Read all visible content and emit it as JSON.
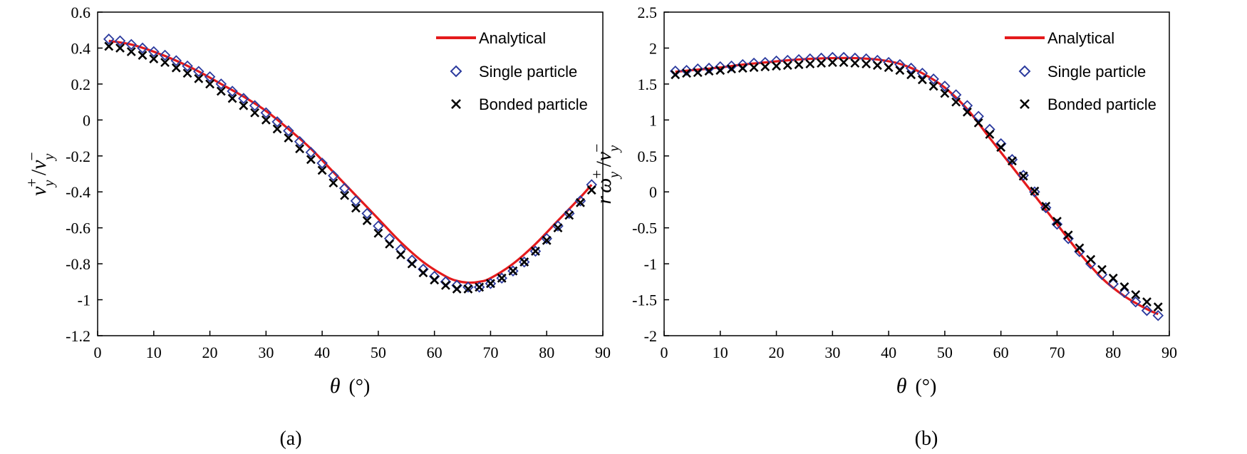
{
  "chart_data": [
    {
      "type": "line",
      "caption": "(a)",
      "title": "",
      "xlabel": "θ (°)",
      "xlabel_symbol": "θ",
      "xlabel_unit": "(°)",
      "ylabel": "v_y^+ / v_y^-",
      "ylabel_parts": {
        "base": "v",
        "sub": "y",
        "sup_plus": "+",
        "slash": "/",
        "sup_minus": "−"
      },
      "xlim": [
        0,
        90
      ],
      "ylim": [
        -1.2,
        0.6
      ],
      "xticks": [
        0,
        10,
        20,
        30,
        40,
        50,
        60,
        70,
        80,
        90
      ],
      "yticks": [
        0.6,
        0.4,
        0.2,
        0,
        -0.2,
        -0.4,
        -0.6,
        -0.8,
        -1,
        -1.2
      ],
      "ytick_labels": [
        "0.6",
        "0.4",
        "0.2",
        "0",
        "-0.2",
        "-0.4",
        "-0.6",
        "-0.8",
        "-1",
        "-1.2"
      ],
      "xtick_labels": [
        "0",
        "10",
        "20",
        "30",
        "40",
        "50",
        "60",
        "70",
        "80",
        "90"
      ],
      "legend": {
        "position": "top-right",
        "entries": [
          "Analytical",
          "Single particle",
          "Bonded particle"
        ]
      },
      "series": [
        {
          "name": "Analytical",
          "style": "line",
          "color": "#e41a1c",
          "x": [
            2,
            6,
            10,
            14,
            18,
            22,
            26,
            30,
            34,
            38,
            42,
            46,
            50,
            54,
            58,
            62,
            64,
            66,
            68,
            70,
            74,
            78,
            82,
            86,
            88
          ],
          "y": [
            0.44,
            0.42,
            0.38,
            0.33,
            0.27,
            0.2,
            0.13,
            0.05,
            -0.05,
            -0.16,
            -0.29,
            -0.42,
            -0.55,
            -0.68,
            -0.79,
            -0.87,
            -0.895,
            -0.905,
            -0.9,
            -0.88,
            -0.8,
            -0.69,
            -0.56,
            -0.43,
            -0.36
          ]
        },
        {
          "name": "Single particle",
          "style": "diamond",
          "color": "#2b3a9e",
          "x": [
            2,
            4,
            6,
            8,
            10,
            12,
            14,
            16,
            18,
            20,
            22,
            24,
            26,
            28,
            30,
            32,
            34,
            36,
            38,
            40,
            42,
            44,
            46,
            48,
            50,
            52,
            54,
            56,
            58,
            60,
            62,
            64,
            66,
            68,
            70,
            72,
            74,
            76,
            78,
            80,
            82,
            84,
            86,
            88
          ],
          "y": [
            0.45,
            0.44,
            0.42,
            0.4,
            0.38,
            0.36,
            0.33,
            0.3,
            0.27,
            0.24,
            0.2,
            0.16,
            0.12,
            0.08,
            0.04,
            -0.01,
            -0.06,
            -0.12,
            -0.18,
            -0.24,
            -0.31,
            -0.38,
            -0.45,
            -0.52,
            -0.59,
            -0.66,
            -0.72,
            -0.78,
            -0.83,
            -0.87,
            -0.9,
            -0.92,
            -0.93,
            -0.93,
            -0.91,
            -0.88,
            -0.84,
            -0.79,
            -0.73,
            -0.66,
            -0.59,
            -0.52,
            -0.45,
            -0.36
          ]
        },
        {
          "name": "Bonded particle",
          "style": "cross",
          "color": "#000000",
          "x": [
            2,
            4,
            6,
            8,
            10,
            12,
            14,
            16,
            18,
            20,
            22,
            24,
            26,
            28,
            30,
            32,
            34,
            36,
            38,
            40,
            42,
            44,
            46,
            48,
            50,
            52,
            54,
            56,
            58,
            60,
            62,
            64,
            66,
            68,
            70,
            72,
            74,
            76,
            78,
            80,
            82,
            84,
            86,
            88
          ],
          "y": [
            0.41,
            0.4,
            0.38,
            0.36,
            0.34,
            0.32,
            0.29,
            0.26,
            0.23,
            0.2,
            0.16,
            0.12,
            0.08,
            0.04,
            0,
            -0.05,
            -0.1,
            -0.16,
            -0.22,
            -0.28,
            -0.35,
            -0.42,
            -0.49,
            -0.56,
            -0.63,
            -0.69,
            -0.75,
            -0.8,
            -0.85,
            -0.89,
            -0.92,
            -0.94,
            -0.94,
            -0.93,
            -0.91,
            -0.88,
            -0.84,
            -0.79,
            -0.73,
            -0.67,
            -0.6,
            -0.53,
            -0.46,
            -0.39
          ]
        }
      ]
    },
    {
      "type": "line",
      "caption": "(b)",
      "title": "",
      "xlabel": "θ (°)",
      "xlabel_symbol": "θ",
      "xlabel_unit": "(°)",
      "ylabel": "r ω_y^+ / v_y^-",
      "ylabel_parts": {
        "r": "r",
        "omega": "ω",
        "sub": "y",
        "sup_plus": "+",
        "slash": "/",
        "v": "v",
        "sup_minus": "−"
      },
      "xlim": [
        0,
        90
      ],
      "ylim": [
        -2,
        2.5
      ],
      "xticks": [
        0,
        10,
        20,
        30,
        40,
        50,
        60,
        70,
        80,
        90
      ],
      "yticks": [
        2.5,
        2,
        1.5,
        1,
        0.5,
        0,
        -0.5,
        -1,
        -1.5,
        -2
      ],
      "ytick_labels": [
        "2.5",
        "2",
        "1.5",
        "1",
        "0.5",
        "0",
        "-0.5",
        "-1",
        "-1.5",
        "-2"
      ],
      "xtick_labels": [
        "0",
        "10",
        "20",
        "30",
        "40",
        "50",
        "60",
        "70",
        "80",
        "90"
      ],
      "legend": {
        "position": "top-right",
        "entries": [
          "Analytical",
          "Single particle",
          "Bonded particle"
        ]
      },
      "series": [
        {
          "name": "Analytical",
          "style": "line",
          "color": "#e41a1c",
          "x": [
            2,
            6,
            10,
            14,
            18,
            22,
            26,
            30,
            34,
            38,
            42,
            46,
            50,
            54,
            58,
            62,
            66,
            70,
            74,
            78,
            82,
            86,
            88
          ],
          "y": [
            1.67,
            1.7,
            1.73,
            1.77,
            1.8,
            1.83,
            1.85,
            1.86,
            1.86,
            1.84,
            1.78,
            1.65,
            1.45,
            1.15,
            0.75,
            0.35,
            -0.05,
            -0.45,
            -0.85,
            -1.2,
            -1.45,
            -1.63,
            -1.7
          ]
        },
        {
          "name": "Single particle",
          "style": "diamond",
          "color": "#2b3a9e",
          "x": [
            2,
            4,
            6,
            8,
            10,
            12,
            14,
            16,
            18,
            20,
            22,
            24,
            26,
            28,
            30,
            32,
            34,
            36,
            38,
            40,
            42,
            44,
            46,
            48,
            50,
            52,
            54,
            56,
            58,
            60,
            62,
            64,
            66,
            68,
            70,
            72,
            74,
            76,
            78,
            80,
            82,
            84,
            86,
            88
          ],
          "y": [
            1.68,
            1.69,
            1.71,
            1.72,
            1.74,
            1.75,
            1.77,
            1.79,
            1.8,
            1.82,
            1.83,
            1.84,
            1.85,
            1.86,
            1.87,
            1.87,
            1.86,
            1.85,
            1.83,
            1.8,
            1.77,
            1.72,
            1.65,
            1.57,
            1.47,
            1.35,
            1.2,
            1.05,
            0.87,
            0.67,
            0.45,
            0.23,
            0,
            -0.22,
            -0.45,
            -0.65,
            -0.83,
            -1,
            -1.15,
            -1.28,
            -1.4,
            -1.53,
            -1.65,
            -1.72
          ]
        },
        {
          "name": "Bonded particle",
          "style": "cross",
          "color": "#000000",
          "x": [
            2,
            4,
            6,
            8,
            10,
            12,
            14,
            16,
            18,
            20,
            22,
            24,
            26,
            28,
            30,
            32,
            34,
            36,
            38,
            40,
            42,
            44,
            46,
            48,
            50,
            52,
            54,
            56,
            58,
            60,
            62,
            64,
            66,
            68,
            70,
            72,
            74,
            76,
            78,
            80,
            82,
            84,
            86,
            88
          ],
          "y": [
            1.63,
            1.65,
            1.66,
            1.68,
            1.69,
            1.71,
            1.72,
            1.73,
            1.74,
            1.75,
            1.76,
            1.77,
            1.78,
            1.79,
            1.8,
            1.8,
            1.79,
            1.78,
            1.76,
            1.73,
            1.69,
            1.63,
            1.56,
            1.47,
            1.37,
            1.25,
            1.11,
            0.96,
            0.8,
            0.62,
            0.43,
            0.22,
            0.01,
            -0.2,
            -0.41,
            -0.6,
            -0.78,
            -0.94,
            -1.08,
            -1.2,
            -1.32,
            -1.43,
            -1.53,
            -1.6
          ]
        }
      ]
    }
  ]
}
